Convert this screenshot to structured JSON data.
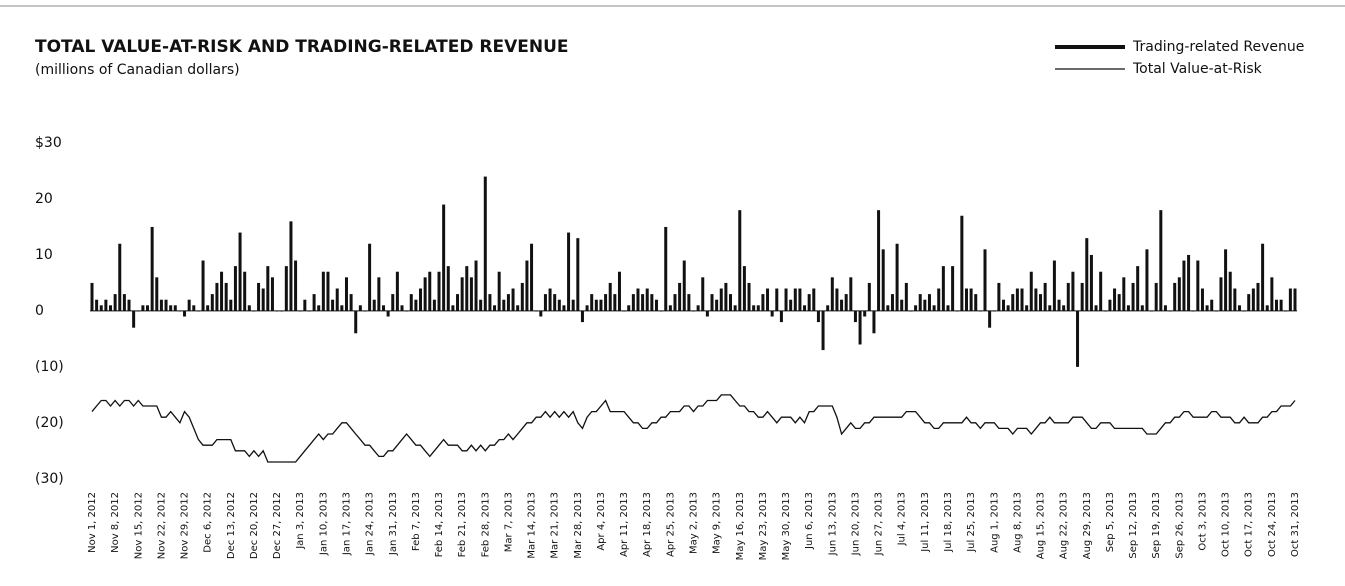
{
  "chart_data": {
    "type": "bar",
    "title": "TOTAL VALUE-AT-RISK AND TRADING-RELATED REVENUE",
    "subtitle": "(millions of Canadian dollars)",
    "categories": [
      "Nov 1, 2012",
      null,
      null,
      null,
      null,
      "Nov 8, 2012",
      null,
      null,
      null,
      null,
      "Nov 15, 2012",
      null,
      null,
      null,
      null,
      "Nov 22, 2012",
      null,
      null,
      null,
      null,
      "Nov 29, 2012",
      null,
      null,
      null,
      null,
      "Dec 6, 2012",
      null,
      null,
      null,
      null,
      "Dec 13, 2012",
      null,
      null,
      null,
      null,
      "Dec 20, 2012",
      null,
      null,
      null,
      null,
      "Dec 27, 2012",
      null,
      null,
      null,
      null,
      "Jan 3, 2013",
      null,
      null,
      null,
      null,
      "Jan 10, 2013",
      null,
      null,
      null,
      null,
      "Jan 17, 2013",
      null,
      null,
      null,
      null,
      "Jan 24, 2013",
      null,
      null,
      null,
      null,
      "Jan 31, 2013",
      null,
      null,
      null,
      null,
      "Feb 7, 2013",
      null,
      null,
      null,
      null,
      "Feb 14, 2013",
      null,
      null,
      null,
      null,
      "Feb 21, 2013",
      null,
      null,
      null,
      null,
      "Feb 28, 2013",
      null,
      null,
      null,
      null,
      "Mar 7, 2013",
      null,
      null,
      null,
      null,
      "Mar 14, 2013",
      null,
      null,
      null,
      null,
      "Mar 21, 2013",
      null,
      null,
      null,
      null,
      "Mar 28, 2013",
      null,
      null,
      null,
      null,
      "Apr 4, 2013",
      null,
      null,
      null,
      null,
      "Apr 11, 2013",
      null,
      null,
      null,
      null,
      "Apr 18, 2013",
      null,
      null,
      null,
      null,
      "Apr 25, 2013",
      null,
      null,
      null,
      null,
      "May 2, 2013",
      null,
      null,
      null,
      null,
      "May 9, 2013",
      null,
      null,
      null,
      null,
      "May 16, 2013",
      null,
      null,
      null,
      null,
      "May 23, 2013",
      null,
      null,
      null,
      null,
      "May 30, 2013",
      null,
      null,
      null,
      null,
      "Jun 6, 2013",
      null,
      null,
      null,
      null,
      "Jun 13, 2013",
      null,
      null,
      null,
      null,
      "Jun 20, 2013",
      null,
      null,
      null,
      null,
      "Jun 27, 2013",
      null,
      null,
      null,
      null,
      "Jul 4, 2013",
      null,
      null,
      null,
      null,
      "Jul 11, 2013",
      null,
      null,
      null,
      null,
      "Jul 18, 2013",
      null,
      null,
      null,
      null,
      "Jul 25, 2013",
      null,
      null,
      null,
      null,
      "Aug 1, 2013",
      null,
      null,
      null,
      null,
      "Aug 8, 2013",
      null,
      null,
      null,
      null,
      "Aug 15, 2013",
      null,
      null,
      null,
      null,
      "Aug 22, 2013",
      null,
      null,
      null,
      null,
      "Aug 29, 2013",
      null,
      null,
      null,
      null,
      "Sep 5, 2013",
      null,
      null,
      null,
      null,
      "Sep 12, 2013",
      null,
      null,
      null,
      null,
      "Sep 19, 2013",
      null,
      null,
      null,
      null,
      "Sep 26, 2013",
      null,
      null,
      null,
      null,
      "Oct 3, 2013",
      null,
      null,
      null,
      null,
      "Oct 10, 2013",
      null,
      null,
      null,
      null,
      "Oct 17, 2013",
      null,
      null,
      null,
      null,
      "Oct 24, 2013",
      null,
      null,
      null,
      null,
      "Oct 31, 2013"
    ],
    "series": [
      {
        "name": "Trading-related Revenue",
        "color": "#111111",
        "values": [
          5,
          2,
          1,
          2,
          1,
          3,
          12,
          3,
          2,
          -3,
          0,
          1,
          1,
          15,
          6,
          2,
          2,
          1,
          1,
          0,
          -1,
          2,
          1,
          0,
          9,
          1,
          3,
          5,
          7,
          5,
          2,
          8,
          14,
          7,
          1,
          0,
          5,
          4,
          8,
          6,
          0,
          0,
          8,
          16,
          9,
          0,
          2,
          0,
          3,
          1,
          7,
          7,
          2,
          4,
          1,
          6,
          3,
          -4,
          1,
          0,
          12,
          2,
          6,
          1,
          -1,
          3,
          7,
          1,
          0,
          3,
          2,
          4,
          6,
          7,
          2,
          7,
          19,
          8,
          1,
          3,
          6,
          8,
          6,
          9,
          2,
          24,
          3,
          1,
          7,
          2,
          3,
          4,
          1,
          5,
          9,
          12,
          0,
          -1,
          3,
          4,
          3,
          2,
          1,
          14,
          2,
          13,
          -2,
          1,
          3,
          2,
          2,
          3,
          5,
          3,
          7,
          0,
          1,
          3,
          4,
          3,
          4,
          3,
          2,
          0,
          15,
          1,
          3,
          5,
          9,
          3,
          0,
          1,
          6,
          -1,
          3,
          2,
          4,
          5,
          3,
          1,
          18,
          8,
          5,
          1,
          1,
          3,
          4,
          -1,
          4,
          -2,
          4,
          2,
          4,
          4,
          1,
          3,
          4,
          -2,
          -7,
          1,
          6,
          4,
          2,
          3,
          6,
          -2,
          -6,
          -1,
          5,
          -4,
          18,
          11,
          1,
          3,
          12,
          2,
          5,
          0,
          1,
          3,
          2,
          3,
          1,
          4,
          8,
          1,
          8,
          0,
          17,
          4,
          4,
          3,
          0,
          11,
          -3,
          0,
          5,
          2,
          1,
          3,
          4,
          4,
          1,
          7,
          4,
          3,
          5,
          1,
          9,
          2,
          1,
          5,
          7,
          -10,
          5,
          13,
          10,
          1,
          7,
          0,
          2,
          4,
          3,
          6,
          1,
          5,
          8,
          1,
          11,
          0,
          5,
          18,
          1,
          0,
          5,
          6,
          9,
          10,
          0,
          9,
          4,
          1,
          2,
          0,
          6,
          11,
          7,
          4,
          1,
          0,
          3,
          4,
          5,
          12,
          1,
          6,
          2,
          2,
          0,
          4,
          4
        ]
      },
      {
        "name": "Total Value-at-Risk",
        "type": "line",
        "color": "#111111",
        "values": [
          -18,
          -17,
          -16,
          -16,
          -17,
          -16,
          -17,
          -16,
          -16,
          -17,
          -16,
          -17,
          -17,
          -17,
          -17,
          -19,
          -19,
          -18,
          -19,
          -20,
          -18,
          -19,
          -21,
          -23,
          -24,
          -24,
          -24,
          -23,
          -23,
          -23,
          -23,
          -25,
          -25,
          -25,
          -26,
          -25,
          -26,
          -25,
          -27,
          -27,
          -27,
          -27,
          -27,
          -27,
          -27,
          -26,
          -25,
          -24,
          -23,
          -22,
          -23,
          -22,
          -22,
          -21,
          -20,
          -20,
          -21,
          -22,
          -23,
          -24,
          -24,
          -25,
          -26,
          -26,
          -25,
          -25,
          -24,
          -23,
          -22,
          -23,
          -24,
          -24,
          -25,
          -26,
          -25,
          -24,
          -23,
          -24,
          -24,
          -24,
          -25,
          -25,
          -24,
          -25,
          -24,
          -25,
          -24,
          -24,
          -23,
          -23,
          -22,
          -23,
          -22,
          -21,
          -20,
          -20,
          -19,
          -19,
          -18,
          -19,
          -18,
          -19,
          -18,
          -19,
          -18,
          -20,
          -21,
          -19,
          -18,
          -18,
          -17,
          -16,
          -18,
          -18,
          -18,
          -18,
          -19,
          -20,
          -20,
          -21,
          -21,
          -20,
          -20,
          -19,
          -19,
          -18,
          -18,
          -18,
          -17,
          -17,
          -18,
          -17,
          -17,
          -16,
          -16,
          -16,
          -15,
          -15,
          -15,
          -16,
          -17,
          -17,
          -18,
          -18,
          -19,
          -19,
          -18,
          -19,
          -20,
          -19,
          -19,
          -19,
          -20,
          -19,
          -20,
          -18,
          -18,
          -17,
          -17,
          -17,
          -17,
          -19,
          -22,
          -21,
          -20,
          -21,
          -21,
          -20,
          -20,
          -19,
          -19,
          -19,
          -19,
          -19,
          -19,
          -19,
          -18,
          -18,
          -18,
          -19,
          -20,
          -20,
          -21,
          -21,
          -20,
          -20,
          -20,
          -20,
          -20,
          -19,
          -20,
          -20,
          -21,
          -20,
          -20,
          -20,
          -21,
          -21,
          -21,
          -22,
          -21,
          -21,
          -21,
          -22,
          -21,
          -20,
          -20,
          -19,
          -20,
          -20,
          -20,
          -20,
          -19,
          -19,
          -19,
          -20,
          -21,
          -21,
          -20,
          -20,
          -20,
          -21,
          -21,
          -21,
          -21,
          -21,
          -21,
          -21,
          -22,
          -22,
          -22,
          -21,
          -20,
          -20,
          -19,
          -19,
          -18,
          -18,
          -19,
          -19,
          -19,
          -19,
          -18,
          -18,
          -19,
          -19,
          -19,
          -20,
          -20,
          -19,
          -20,
          -20,
          -20,
          -19,
          -19,
          -18,
          -18,
          -17,
          -17,
          -17,
          -16
        ]
      }
    ],
    "ylim": [
      -32,
      30
    ],
    "yticks": [
      {
        "value": 30,
        "label": "$30"
      },
      20,
      10,
      0,
      {
        "value": -10,
        "label": "(10)"
      },
      {
        "value": -20,
        "label": "(20)"
      },
      {
        "value": -30,
        "label": "(30)"
      }
    ],
    "legend": "top-right"
  }
}
